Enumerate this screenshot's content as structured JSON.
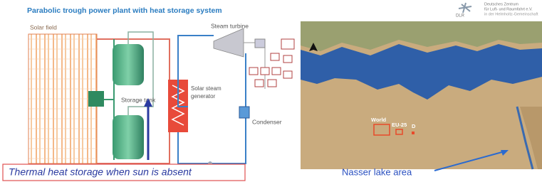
{
  "header": {
    "title": "Parabolic trough power plant with heat storage system"
  },
  "diagram": {
    "solar_field": "Solar field",
    "turbine": "Steam turbine",
    "storage": "Storage tank",
    "generator": [
      "Solar steam",
      "generator"
    ],
    "condenser": "Condenser",
    "caption": "Thermal heat storage when sun is absent"
  },
  "logo": {
    "acronym": "DLR",
    "lines": [
      "Deutsches Zentrum",
      "für Luft- und Raumfahrt e.V.",
      "in der Helmholtz-Gemeinschaft"
    ]
  },
  "map": {
    "regions": [
      "World",
      "EU-25",
      "D"
    ],
    "caption": "Nasser lake area"
  }
}
